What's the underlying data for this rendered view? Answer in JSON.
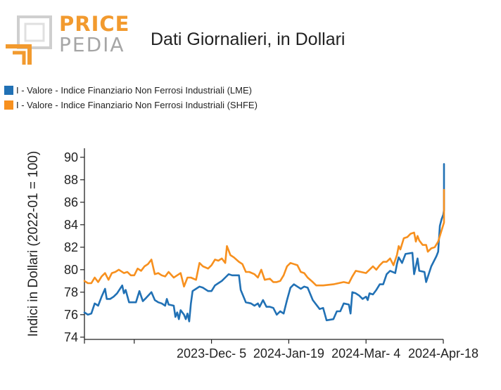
{
  "brand": {
    "word1": "PRICE",
    "word2": "PEDIA"
  },
  "colors": {
    "lme": "#2171b5",
    "shfe": "#f7901e",
    "logo_orange": "#f29a2e",
    "logo_gray": "#a6a6a6"
  },
  "chart_data": {
    "type": "line",
    "title": "Dati Giornalieri, in Dollari",
    "ylabel": "Indici in Dollari (2022-01 = 100)",
    "xlabel": "",
    "ylim": [
      73.8,
      90.8
    ],
    "yticks": [
      74,
      76,
      78,
      80,
      82,
      84,
      86,
      88,
      90
    ],
    "x_range": [
      "2023-09-22",
      "2024-04-18"
    ],
    "xticks": [
      {
        "date": "2023-10-21",
        "label": ""
      },
      {
        "date": "2023-12-05",
        "label": "2023-Dec- 5"
      },
      {
        "date": "2024-01-19",
        "label": "2024-Jan-19"
      },
      {
        "date": "2024-03-04",
        "label": "2024-Mar- 4"
      },
      {
        "date": "2024-04-18",
        "label": "2024-Apr-18"
      }
    ],
    "legend_position": "top-left",
    "grid": false,
    "series": [
      {
        "name": "I - Valore - Indice Finanziario Non Ferrosi Industriali (LME)",
        "color": "#2171b5",
        "points": [
          [
            "2023-09-22",
            76.2
          ],
          [
            "2023-09-24",
            76.0
          ],
          [
            "2023-09-26",
            76.1
          ],
          [
            "2023-09-28",
            77.0
          ],
          [
            "2023-09-30",
            76.8
          ],
          [
            "2023-10-02",
            77.6
          ],
          [
            "2023-10-04",
            78.3
          ],
          [
            "2023-10-05",
            77.4
          ],
          [
            "2023-10-07",
            77.4
          ],
          [
            "2023-10-09",
            77.6
          ],
          [
            "2023-10-11",
            77.9
          ],
          [
            "2023-10-14",
            78.6
          ],
          [
            "2023-10-15",
            77.9
          ],
          [
            "2023-10-16",
            78.2
          ],
          [
            "2023-10-18",
            77.1
          ],
          [
            "2023-10-20",
            77.1
          ],
          [
            "2023-10-22",
            77.1
          ],
          [
            "2023-10-24",
            78.1
          ],
          [
            "2023-10-26",
            77.2
          ],
          [
            "2023-10-28",
            77.5
          ],
          [
            "2023-10-31",
            78.0
          ],
          [
            "2023-11-02",
            77.3
          ],
          [
            "2023-11-04",
            77.1
          ],
          [
            "2023-11-06",
            77.0
          ],
          [
            "2023-11-08",
            76.8
          ],
          [
            "2023-11-09",
            77.4
          ],
          [
            "2023-11-10",
            76.9
          ],
          [
            "2023-11-13",
            76.8
          ],
          [
            "2023-11-14",
            75.8
          ],
          [
            "2023-11-15",
            76.2
          ],
          [
            "2023-11-16",
            75.6
          ],
          [
            "2023-11-17",
            76.4
          ],
          [
            "2023-11-19",
            76.0
          ],
          [
            "2023-11-20",
            75.6
          ],
          [
            "2023-11-21",
            76.1
          ],
          [
            "2023-11-22",
            75.4
          ],
          [
            "2023-11-23",
            77.0
          ],
          [
            "2023-11-24",
            78.1
          ],
          [
            "2023-11-26",
            78.3
          ],
          [
            "2023-11-28",
            78.5
          ],
          [
            "2023-11-30",
            78.4
          ],
          [
            "2023-12-03",
            78.1
          ],
          [
            "2023-12-05",
            78.1
          ],
          [
            "2023-12-07",
            78.6
          ],
          [
            "2023-12-09",
            78.8
          ],
          [
            "2023-12-11",
            79.0
          ],
          [
            "2023-12-13",
            79.3
          ],
          [
            "2023-12-15",
            79.6
          ],
          [
            "2023-12-17",
            79.5
          ],
          [
            "2023-12-21",
            79.5
          ],
          [
            "2023-12-22",
            78.2
          ],
          [
            "2023-12-25",
            77.1
          ],
          [
            "2023-12-28",
            77.0
          ],
          [
            "2023-12-30",
            76.8
          ],
          [
            "2024-01-01",
            77.0
          ],
          [
            "2024-01-02",
            76.7
          ],
          [
            "2024-01-04",
            77.3
          ],
          [
            "2024-01-06",
            76.7
          ],
          [
            "2024-01-08",
            76.7
          ],
          [
            "2024-01-10",
            76.6
          ],
          [
            "2024-01-12",
            76.0
          ],
          [
            "2024-01-14",
            76.3
          ],
          [
            "2024-01-16",
            76.1
          ],
          [
            "2024-01-18",
            77.3
          ],
          [
            "2024-01-20",
            78.4
          ],
          [
            "2024-01-22",
            78.7
          ],
          [
            "2024-01-24",
            78.5
          ],
          [
            "2024-01-26",
            78.3
          ],
          [
            "2024-01-28",
            78.5
          ],
          [
            "2024-01-30",
            78.4
          ],
          [
            "2024-02-02",
            77.3
          ],
          [
            "2024-02-04",
            76.9
          ],
          [
            "2024-02-06",
            76.5
          ],
          [
            "2024-02-08",
            76.6
          ],
          [
            "2024-02-10",
            75.5
          ],
          [
            "2024-02-14",
            75.6
          ],
          [
            "2024-02-16",
            76.3
          ],
          [
            "2024-02-18",
            76.3
          ],
          [
            "2024-02-20",
            77.0
          ],
          [
            "2024-02-23",
            76.9
          ],
          [
            "2024-02-24",
            76.1
          ],
          [
            "2024-02-25",
            78.0
          ],
          [
            "2024-02-27",
            77.9
          ],
          [
            "2024-02-29",
            77.7
          ],
          [
            "2024-03-02",
            77.4
          ],
          [
            "2024-03-04",
            77.6
          ],
          [
            "2024-03-05",
            77.3
          ],
          [
            "2024-03-06",
            77.9
          ],
          [
            "2024-03-08",
            77.8
          ],
          [
            "2024-03-10",
            78.2
          ],
          [
            "2024-03-12",
            78.7
          ],
          [
            "2024-03-14",
            78.7
          ],
          [
            "2024-03-16",
            79.6
          ],
          [
            "2024-03-18",
            79.9
          ],
          [
            "2024-03-21",
            79.7
          ],
          [
            "2024-03-22",
            80.5
          ],
          [
            "2024-03-23",
            81.1
          ],
          [
            "2024-03-25",
            80.6
          ],
          [
            "2024-03-27",
            81.4
          ],
          [
            "2024-03-31",
            81.5
          ],
          [
            "2024-04-01",
            79.6
          ],
          [
            "2024-04-02",
            80.3
          ],
          [
            "2024-04-03",
            81.0
          ],
          [
            "2024-04-04",
            79.9
          ],
          [
            "2024-04-07",
            79.8
          ],
          [
            "2024-04-08",
            78.9
          ],
          [
            "2024-04-11",
            80.3
          ],
          [
            "2024-04-14",
            81.2
          ],
          [
            "2024-04-15",
            81.6
          ],
          [
            "2024-04-16",
            83.9
          ],
          [
            "2024-04-17",
            84.5
          ],
          [
            "2024-04-18",
            84.9
          ],
          [
            "2024-04-19",
            85.3
          ],
          [
            "2024-04-20",
            86.8
          ],
          [
            "2024-04-21",
            85.3
          ],
          [
            "2024-04-22",
            86.8
          ],
          [
            "2024-04-23",
            87.0
          ],
          [
            "2024-04-24",
            87.2
          ],
          [
            "2024-04-25",
            87.4
          ],
          [
            "2024-04-26",
            87.0
          ],
          [
            "2024-04-27",
            87.9
          ],
          [
            "2024-04-28",
            89.4
          ]
        ]
      },
      {
        "name": "I - Valore - Indice Finanziario Non Ferrosi Industriali (SHFE)",
        "color": "#f7901e",
        "points": [
          [
            "2023-09-22",
            79.0
          ],
          [
            "2023-09-24",
            78.8
          ],
          [
            "2023-09-26",
            78.8
          ],
          [
            "2023-09-28",
            79.3
          ],
          [
            "2023-09-30",
            78.9
          ],
          [
            "2023-10-02",
            79.4
          ],
          [
            "2023-10-04",
            79.7
          ],
          [
            "2023-10-06",
            79.1
          ],
          [
            "2023-10-08",
            79.7
          ],
          [
            "2023-10-10",
            79.8
          ],
          [
            "2023-10-12",
            80.0
          ],
          [
            "2023-10-15",
            79.7
          ],
          [
            "2023-10-17",
            79.8
          ],
          [
            "2023-10-19",
            79.5
          ],
          [
            "2023-10-21",
            79.5
          ],
          [
            "2023-10-23",
            80.1
          ],
          [
            "2023-10-25",
            79.9
          ],
          [
            "2023-10-27",
            80.3
          ],
          [
            "2023-10-29",
            80.5
          ],
          [
            "2023-10-31",
            80.9
          ],
          [
            "2023-11-02",
            79.6
          ],
          [
            "2023-11-04",
            79.7
          ],
          [
            "2023-11-06",
            79.5
          ],
          [
            "2023-11-08",
            79.4
          ],
          [
            "2023-11-10",
            79.8
          ],
          [
            "2023-11-13",
            79.3
          ],
          [
            "2023-11-15",
            79.5
          ],
          [
            "2023-11-17",
            79.7
          ],
          [
            "2023-11-19",
            78.5
          ],
          [
            "2023-11-21",
            79.3
          ],
          [
            "2023-11-23",
            79.3
          ],
          [
            "2023-11-26",
            79.1
          ],
          [
            "2023-11-28",
            80.6
          ],
          [
            "2023-11-30",
            80.3
          ],
          [
            "2023-12-03",
            80.1
          ],
          [
            "2023-12-05",
            80.4
          ],
          [
            "2023-12-07",
            80.9
          ],
          [
            "2023-12-09",
            80.8
          ],
          [
            "2023-12-11",
            81.0
          ],
          [
            "2023-12-13",
            80.6
          ],
          [
            "2023-12-14",
            82.1
          ],
          [
            "2023-12-16",
            81.3
          ],
          [
            "2023-12-18",
            81.1
          ],
          [
            "2023-12-21",
            80.7
          ],
          [
            "2023-12-23",
            80.5
          ],
          [
            "2023-12-25",
            79.8
          ],
          [
            "2023-12-27",
            79.8
          ],
          [
            "2023-12-30",
            79.6
          ],
          [
            "2024-01-01",
            79.3
          ],
          [
            "2024-01-03",
            80.0
          ],
          [
            "2024-01-05",
            79.1
          ],
          [
            "2024-01-08",
            79.2
          ],
          [
            "2024-01-10",
            78.9
          ],
          [
            "2024-01-12",
            78.9
          ],
          [
            "2024-01-14",
            79.0
          ],
          [
            "2024-01-16",
            79.5
          ],
          [
            "2024-01-18",
            80.3
          ],
          [
            "2024-01-20",
            80.6
          ],
          [
            "2024-01-22",
            80.5
          ],
          [
            "2024-01-24",
            80.4
          ],
          [
            "2024-01-26",
            79.8
          ],
          [
            "2024-01-28",
            79.7
          ],
          [
            "2024-01-30",
            79.3
          ],
          [
            "2024-02-02",
            78.9
          ],
          [
            "2024-02-04",
            78.6
          ],
          [
            "2024-02-08",
            78.6
          ],
          [
            "2024-02-14",
            78.7
          ],
          [
            "2024-02-20",
            78.9
          ],
          [
            "2024-02-23",
            78.8
          ],
          [
            "2024-02-25",
            79.4
          ],
          [
            "2024-02-27",
            79.9
          ],
          [
            "2024-03-01",
            79.8
          ],
          [
            "2024-03-04",
            79.7
          ],
          [
            "2024-03-06",
            80.0
          ],
          [
            "2024-03-08",
            80.3
          ],
          [
            "2024-03-10",
            80.0
          ],
          [
            "2024-03-12",
            80.4
          ],
          [
            "2024-03-14",
            80.7
          ],
          [
            "2024-03-16",
            80.7
          ],
          [
            "2024-03-18",
            81.0
          ],
          [
            "2024-03-20",
            80.4
          ],
          [
            "2024-03-22",
            81.3
          ],
          [
            "2024-03-23",
            82.1
          ],
          [
            "2024-03-24",
            81.8
          ],
          [
            "2024-03-26",
            82.8
          ],
          [
            "2024-03-28",
            82.9
          ],
          [
            "2024-03-30",
            83.2
          ],
          [
            "2024-04-01",
            83.3
          ],
          [
            "2024-04-02",
            82.5
          ],
          [
            "2024-04-03",
            83.0
          ],
          [
            "2024-04-04",
            82.6
          ],
          [
            "2024-04-06",
            82.2
          ],
          [
            "2024-04-08",
            82.2
          ],
          [
            "2024-04-09",
            81.6
          ],
          [
            "2024-04-11",
            81.9
          ],
          [
            "2024-04-13",
            82.0
          ],
          [
            "2024-04-15",
            82.5
          ],
          [
            "2024-04-17",
            83.5
          ],
          [
            "2024-04-19",
            84.2
          ],
          [
            "2024-04-21",
            85.2
          ],
          [
            "2024-04-22",
            86.3
          ],
          [
            "2024-04-23",
            85.9
          ],
          [
            "2024-04-24",
            86.6
          ],
          [
            "2024-04-25",
            86.7
          ],
          [
            "2024-04-26",
            86.9
          ],
          [
            "2024-04-27",
            86.1
          ],
          [
            "2024-04-28",
            87.1
          ]
        ]
      }
    ]
  }
}
